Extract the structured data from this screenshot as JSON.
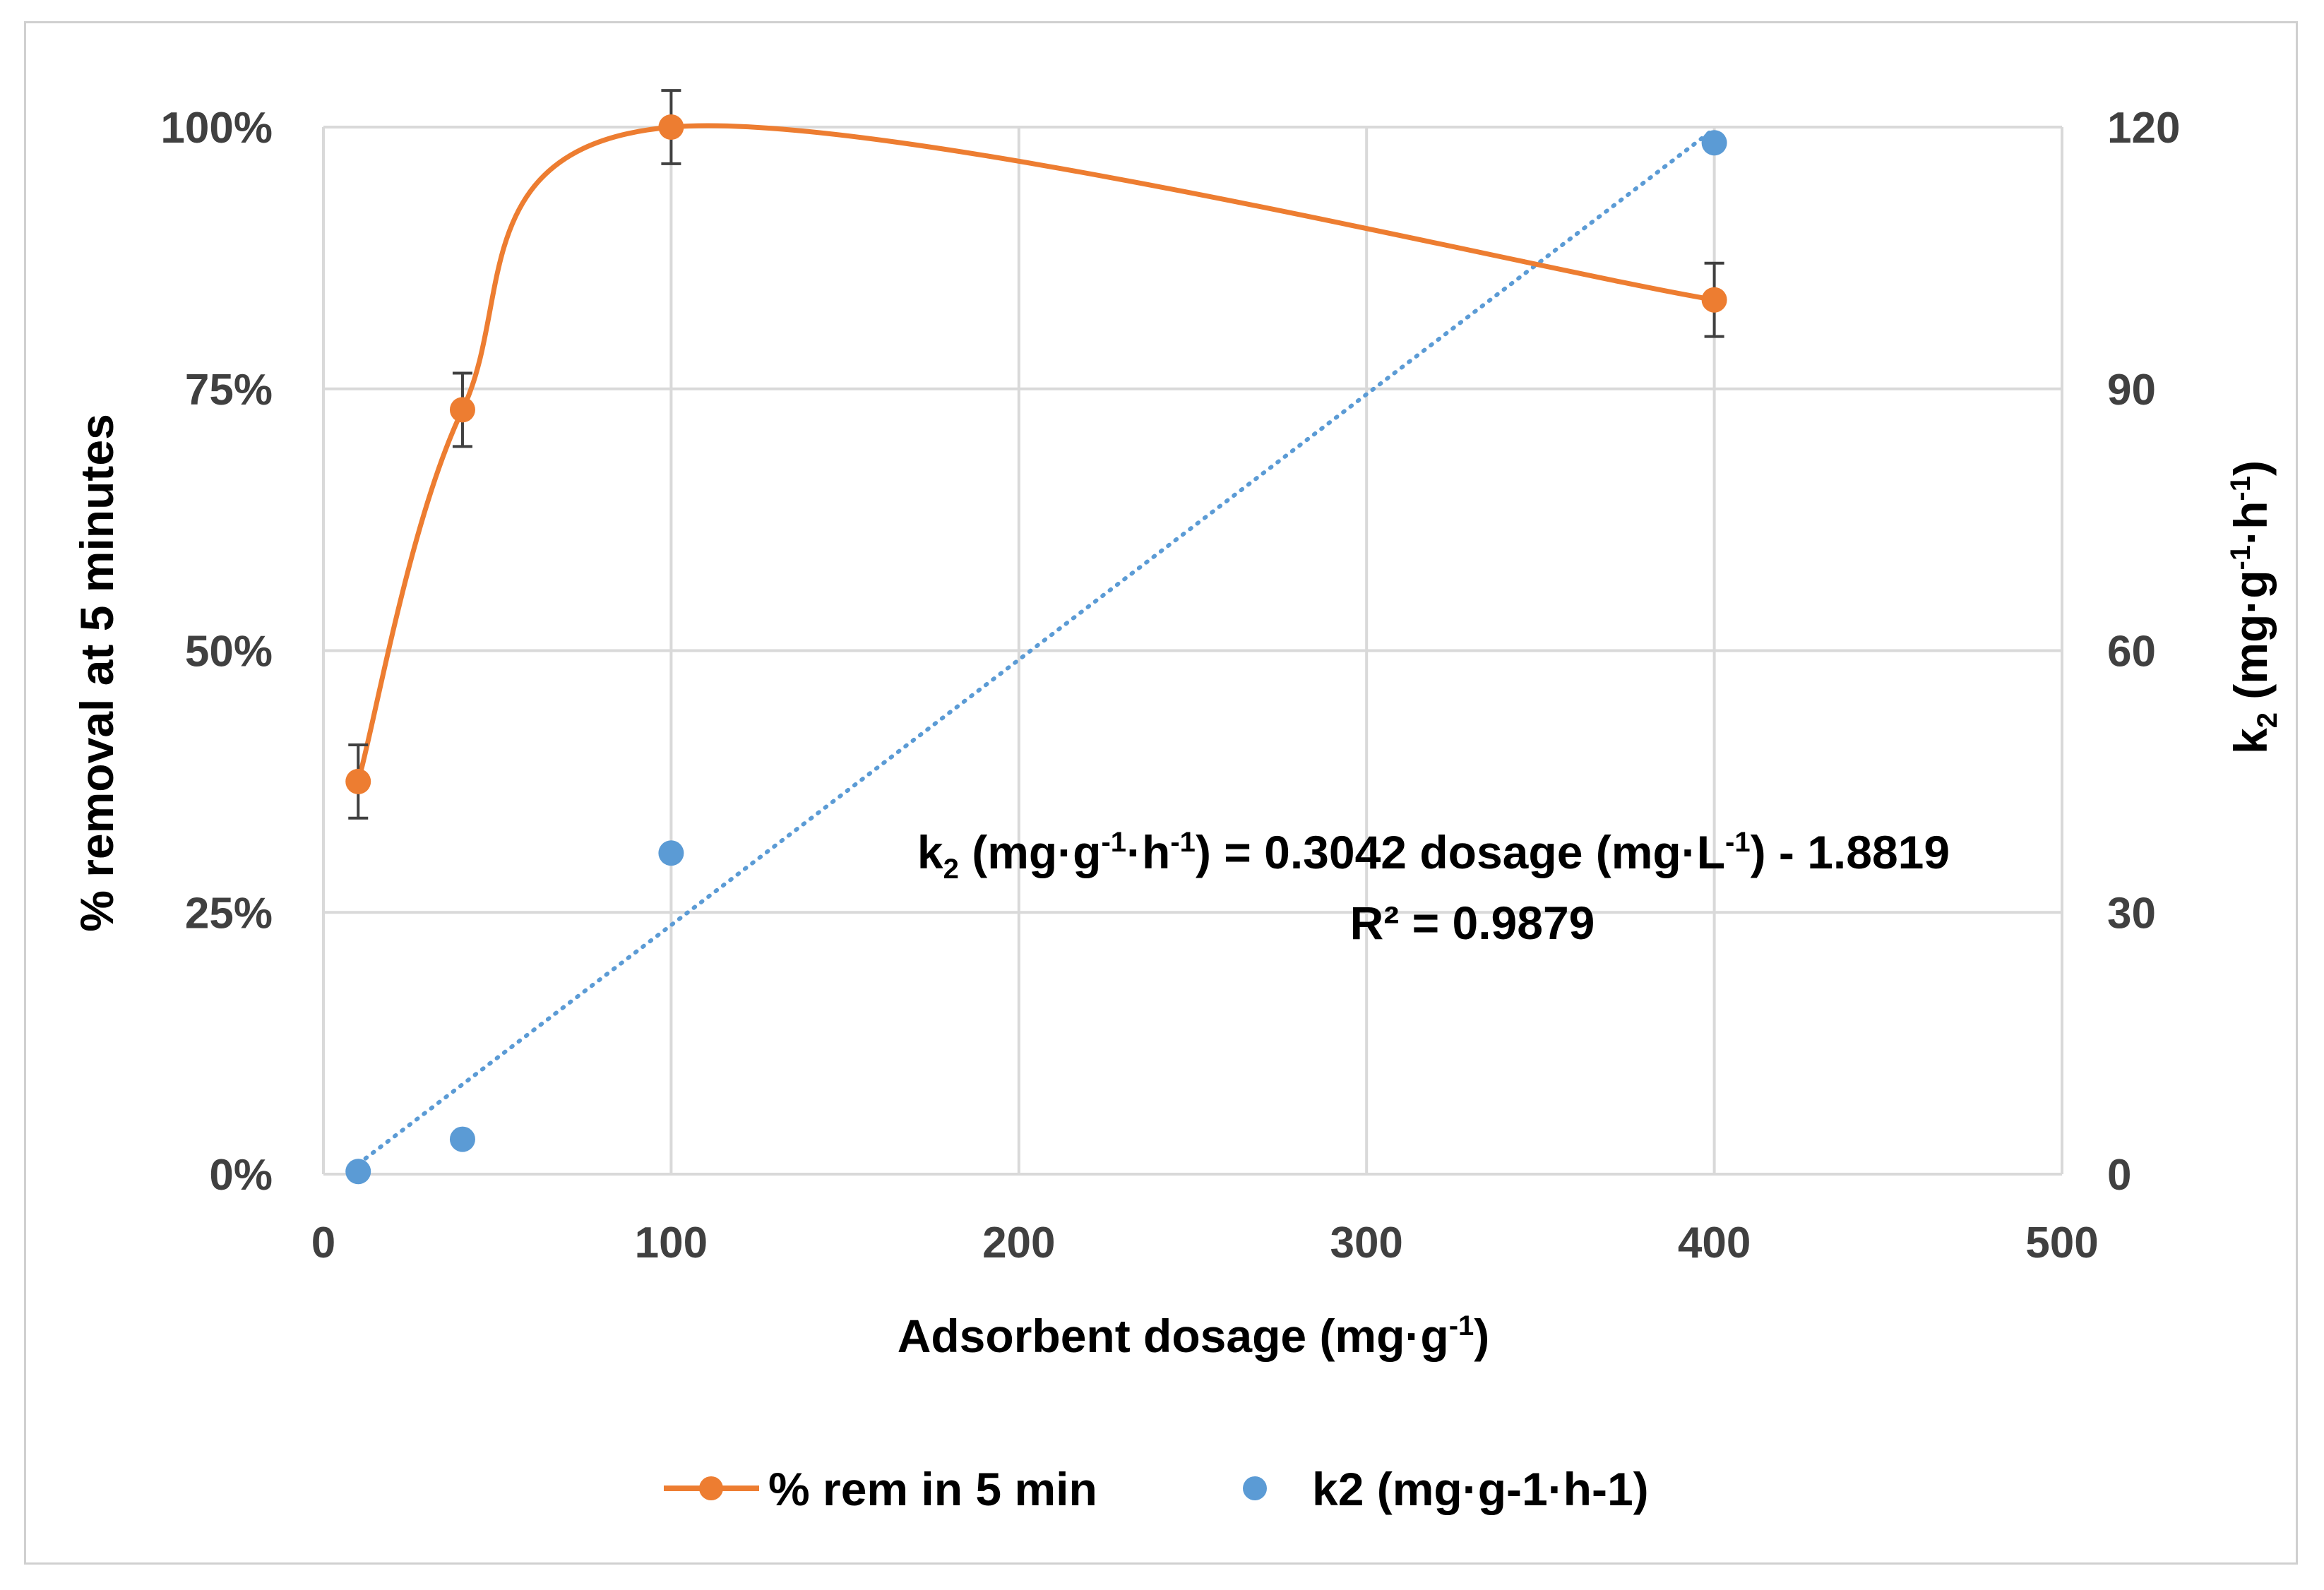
{
  "chart_data": {
    "type": "scatter",
    "xlabel": "Adsorbent dosage (mg·g⁻¹)",
    "ylabel_left": "% removal at 5 minutes",
    "ylabel_right": "k₂ (mg·g⁻¹·h⁻¹)",
    "xlim": [
      0,
      500
    ],
    "ylim_left": [
      0,
      1
    ],
    "ylim_right": [
      0,
      120
    ],
    "x_ticks": [
      "0",
      "100",
      "200",
      "300",
      "400",
      "500"
    ],
    "y_left_ticks": [
      "0%",
      "25%",
      "50%",
      "75%",
      "100%"
    ],
    "y_right_ticks": [
      "0",
      "30",
      "60",
      "90",
      "120"
    ],
    "grid": true,
    "series": [
      {
        "name": "% rem in 5 min",
        "axis": "left",
        "color": "#ED7D31",
        "style": "smooth-line-with-markers",
        "x": [
          10,
          40,
          100,
          400
        ],
        "y": [
          0.375,
          0.73,
          1.0,
          0.835
        ],
        "error": [
          0.035,
          0.035,
          0.035,
          0.035
        ]
      },
      {
        "name": "k2 (mg·g-1·h-1)",
        "axis": "right",
        "color": "#5B9BD5",
        "style": "markers",
        "x": [
          10,
          40,
          100,
          400
        ],
        "y": [
          0.3,
          4.0,
          36.8,
          118.2
        ]
      }
    ],
    "trendline": {
      "series": "k2 (mg·g-1·h-1)",
      "slope": 0.3042,
      "intercept": -1.8819,
      "x_range": [
        10,
        400
      ],
      "color": "#5B9BD5",
      "style": "dotted"
    },
    "annotation": {
      "equation_lead": "k",
      "equation_sub": "2",
      "equation_mid1": " (mg·g",
      "equation_sup1": "-1",
      "equation_mid2": "·h",
      "equation_sup2": "-1",
      "equation_mid3": ") = 0.3042 dosage (mg·L",
      "equation_sup3": "-1",
      "equation_tail": ") - 1.8819",
      "r2": "R² = 0.9879"
    },
    "axis_text": {
      "xlabel_main": "Adsorbent dosage (mg·g",
      "xlabel_sup": "-1",
      "xlabel_close": ")",
      "ylabel_right_k": "k",
      "ylabel_right_sub": "2",
      "ylabel_right_mid1": " (mg·g",
      "ylabel_right_sup1": "-1",
      "ylabel_right_mid2": "·h",
      "ylabel_right_sup2": "-1",
      "ylabel_right_close": ")"
    },
    "legend": [
      "% rem in 5 min",
      "k2 (mg·g-1·h-1)"
    ]
  }
}
